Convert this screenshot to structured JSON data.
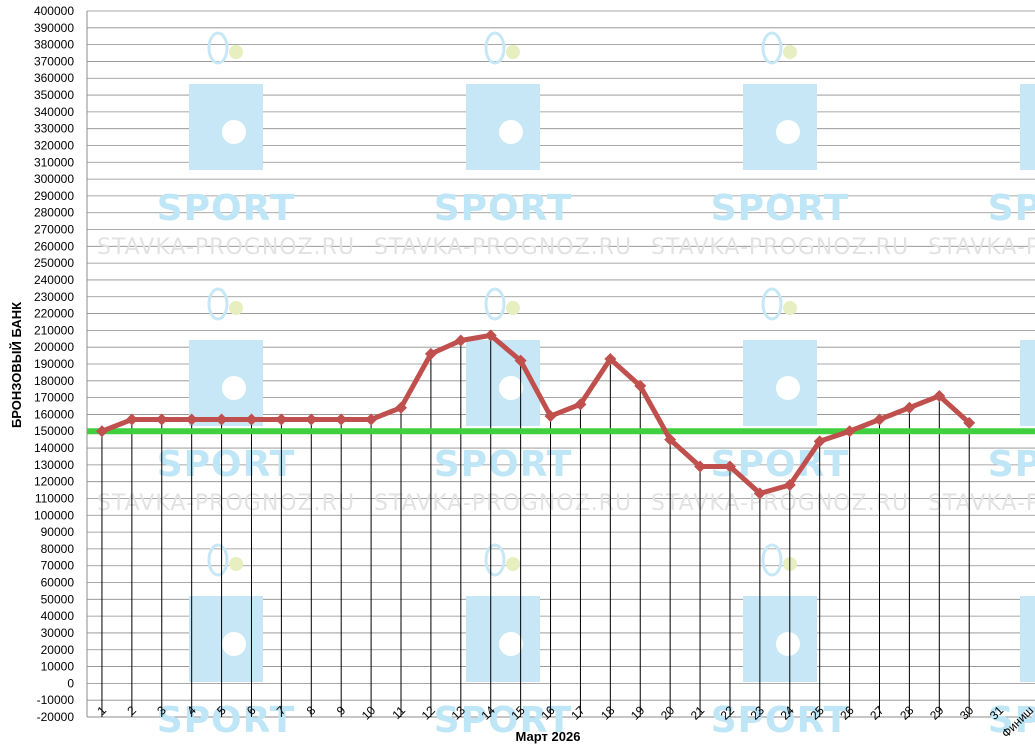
{
  "chart_data": {
    "type": "line",
    "title": "",
    "xlabel": "Март 2026",
    "ylabel": "БРОНЗОВЫЙ БАНК",
    "ylim": [
      -20000,
      400000
    ],
    "ytick_step": 10000,
    "x_tick_labels": [
      "1",
      "2",
      "3",
      "4",
      "5",
      "6",
      "7",
      "8",
      "9",
      "10",
      "11",
      "12",
      "13",
      "14",
      "15",
      "16",
      "17",
      "18",
      "19",
      "20",
      "21",
      "22",
      "23",
      "24",
      "25",
      "26",
      "27",
      "28",
      "29",
      "30",
      "31",
      "Финиш"
    ],
    "series": [
      {
        "values": [
          150000,
          157000,
          157000,
          157000,
          157000,
          157000,
          157000,
          157000,
          157000,
          157000,
          164000,
          196000,
          204000,
          207000,
          192000,
          159000,
          166000,
          193000,
          177000,
          145000,
          129000,
          129000,
          113000,
          118000,
          144000,
          150000,
          157000,
          164000,
          171000,
          155000
        ],
        "color": "#c0504d",
        "marker": "diamond"
      }
    ],
    "reference_line": {
      "value": 150000,
      "color": "#3fcf3f"
    },
    "drop_lines": true,
    "grid": true
  },
  "watermark": {
    "brand": "SPORT",
    "site": "STAVKA-PROGNOZ.RU",
    "icon": "tennis-player-icon"
  }
}
